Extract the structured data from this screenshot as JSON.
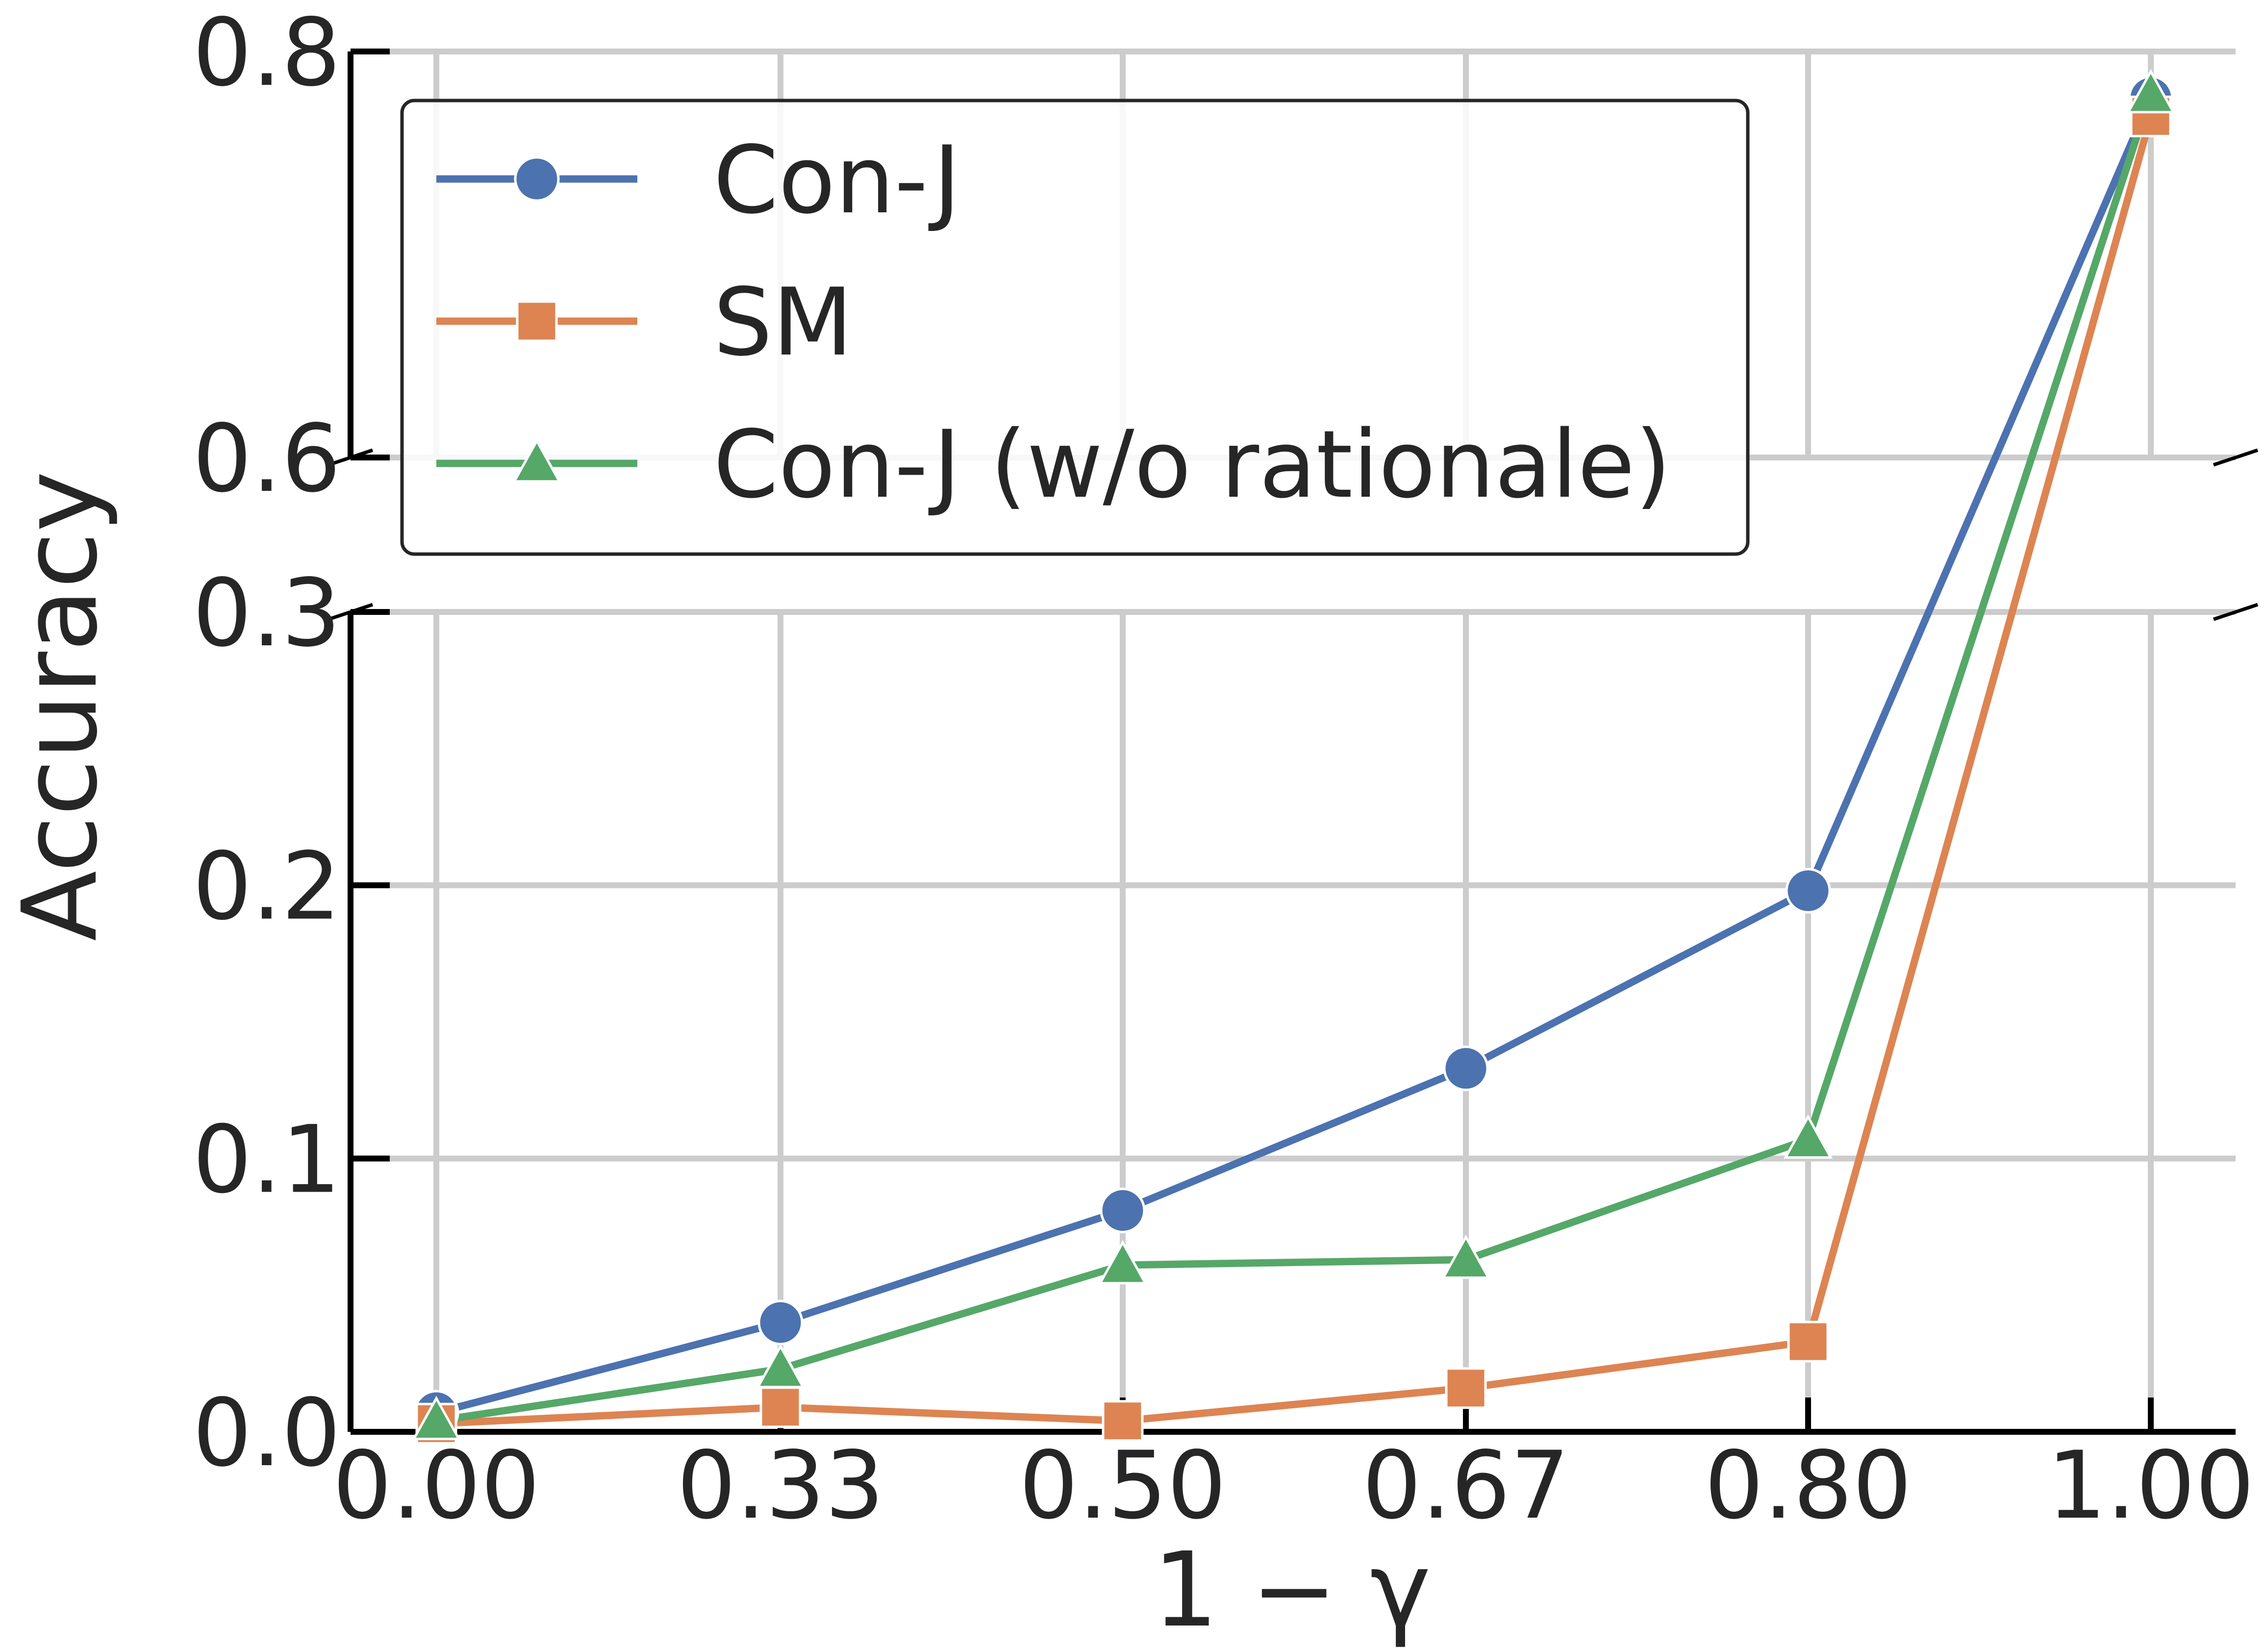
{
  "chart_data": {
    "type": "line",
    "xlabel": "1 − γ",
    "ylabel": "Accuracy",
    "x": [
      0.0,
      0.33,
      0.5,
      0.67,
      0.8,
      1.0
    ],
    "x_tick_labels": [
      "0.00",
      "0.33",
      "0.50",
      "0.67",
      "0.80",
      "1.00"
    ],
    "broken_y_axis": true,
    "upper_panel": {
      "ylim": [
        0.6,
        0.8
      ],
      "y_ticks": [
        "0.6",
        "0.8"
      ]
    },
    "lower_panel": {
      "ylim": [
        0.0,
        0.3
      ],
      "y_ticks": [
        "0.0",
        "0.1",
        "0.2",
        "0.3"
      ]
    },
    "grid": true,
    "legend_position": "upper-left",
    "series": [
      {
        "name": "Con-J",
        "marker": "circle",
        "color": "#4c72b0",
        "values": [
          0.007,
          0.04,
          0.081,
          0.133,
          0.198,
          0.777
        ]
      },
      {
        "name": "SM",
        "marker": "square",
        "color": "#dd8452",
        "values": [
          0.003,
          0.009,
          0.004,
          0.016,
          0.033,
          0.768
        ]
      },
      {
        "name": "Con-J (w/o rationale)",
        "marker": "triangle",
        "color": "#55a868",
        "values": [
          0.004,
          0.023,
          0.061,
          0.063,
          0.107,
          0.779
        ]
      }
    ]
  }
}
